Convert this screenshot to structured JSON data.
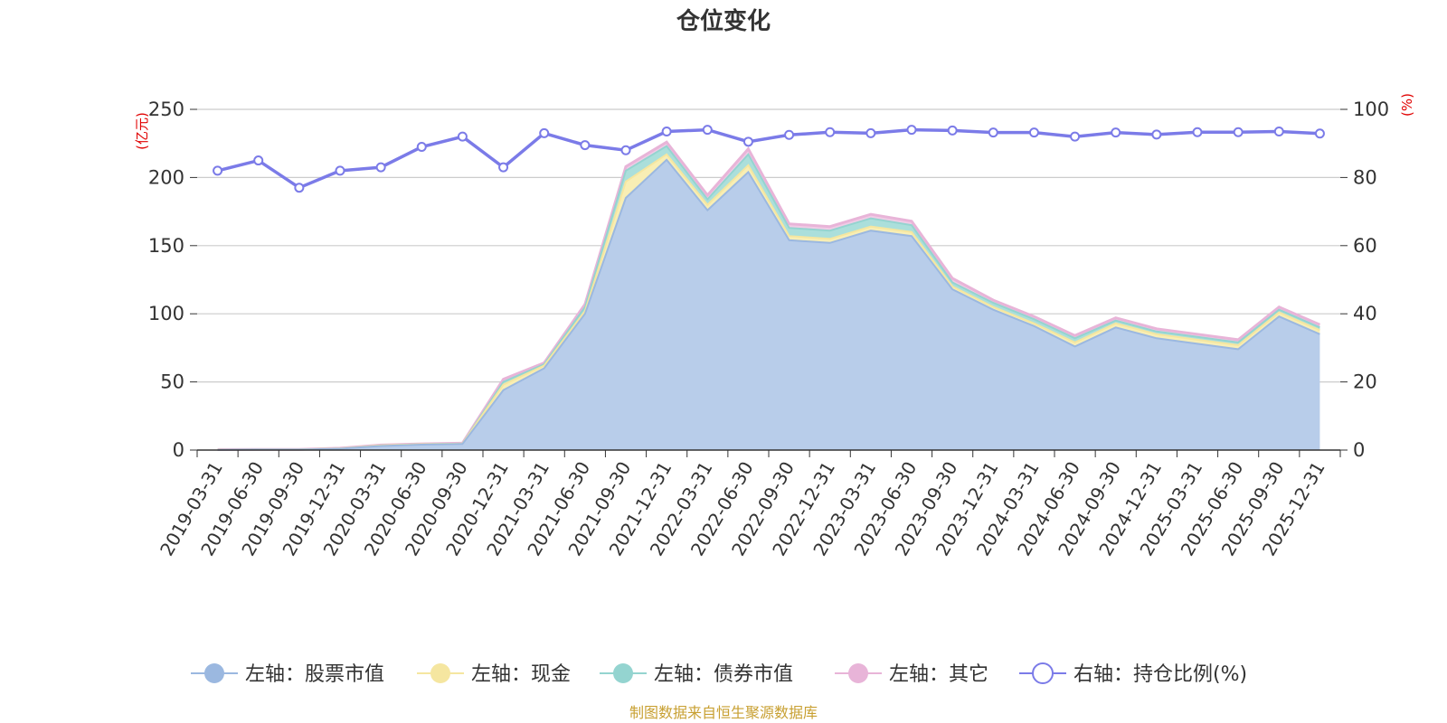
{
  "chart_data": {
    "type": "area",
    "title": "仓位变化",
    "left_axis_unit": "(亿元)",
    "right_axis_unit": "(%)",
    "ylim_left": [
      0,
      250
    ],
    "yticks_left": [
      "0",
      "50",
      "100",
      "150",
      "200",
      "250"
    ],
    "ylim_right": [
      0,
      100
    ],
    "yticks_right": [
      "0",
      "20",
      "40",
      "60",
      "80",
      "100"
    ],
    "categories": [
      "2019-03-31",
      "2019-06-30",
      "2019-09-30",
      "2019-12-31",
      "2020-03-31",
      "2020-06-30",
      "2020-09-30",
      "2020-12-31",
      "2021-03-31",
      "2021-06-30",
      "2021-09-30",
      "2021-12-31",
      "2022-03-31",
      "2022-06-30",
      "2022-09-30",
      "2022-12-31",
      "2023-03-31",
      "2023-06-30",
      "2023-09-30",
      "2023-12-31",
      "2024-03-31",
      "2024-06-30",
      "2024-09-30",
      "2024-12-31",
      "2025-03-31",
      "2025-06-30",
      "2025-09-30",
      "2025-12-31"
    ],
    "stacked_series": [
      {
        "name": "左轴：股票市值",
        "color": "#9bb8e0",
        "fill": "#b8cdea",
        "values": [
          0.2,
          0.3,
          0.3,
          1,
          3,
          4,
          4.5,
          44,
          60,
          100,
          185,
          213,
          176,
          204,
          154,
          152,
          161,
          157,
          118,
          103,
          91,
          76,
          90,
          82,
          78,
          74,
          98,
          85
        ]
      },
      {
        "name": "左轴：现金",
        "color": "#f5e6a0",
        "fill": "#f8eeb4",
        "values": [
          0.1,
          0.1,
          0.1,
          0.2,
          0.4,
          0.3,
          0.3,
          4,
          2,
          2,
          12,
          4,
          4,
          5,
          3,
          3,
          3,
          3,
          2,
          2,
          2,
          3,
          3,
          3,
          3,
          3,
          3,
          3
        ]
      },
      {
        "name": "左轴：债券市值",
        "color": "#94d4d0",
        "fill": "#abdfdb",
        "values": [
          0,
          0,
          0,
          0,
          0,
          0,
          0,
          2,
          1,
          3,
          8,
          6,
          4,
          8,
          6,
          6,
          6,
          5,
          3,
          3,
          3,
          3,
          2,
          2,
          2,
          2,
          2,
          2
        ]
      },
      {
        "name": "左轴：其它",
        "color": "#e8b4d8",
        "fill": "#f0cce6",
        "values": [
          0.1,
          0.1,
          0.1,
          0.2,
          0.3,
          0.3,
          0.3,
          2,
          1,
          2,
          3,
          3,
          3,
          4,
          3,
          3,
          3,
          3,
          3,
          2,
          2,
          2,
          2,
          2,
          2,
          2,
          2,
          2
        ]
      }
    ],
    "line_series": {
      "name": "右轴：持仓比例(%)",
      "color": "#7b7be8",
      "values": [
        82,
        85,
        77,
        82,
        83,
        89,
        92,
        83,
        93,
        89.5,
        88,
        93.5,
        94,
        90.5,
        92.5,
        93.3,
        93,
        94,
        93.8,
        93.2,
        93.2,
        92,
        93.2,
        92.6,
        93.3,
        93.3,
        93.5,
        92.9
      ]
    },
    "legend_position": "bottom-center"
  },
  "source_text": "制图数据来自恒生聚源数据库"
}
